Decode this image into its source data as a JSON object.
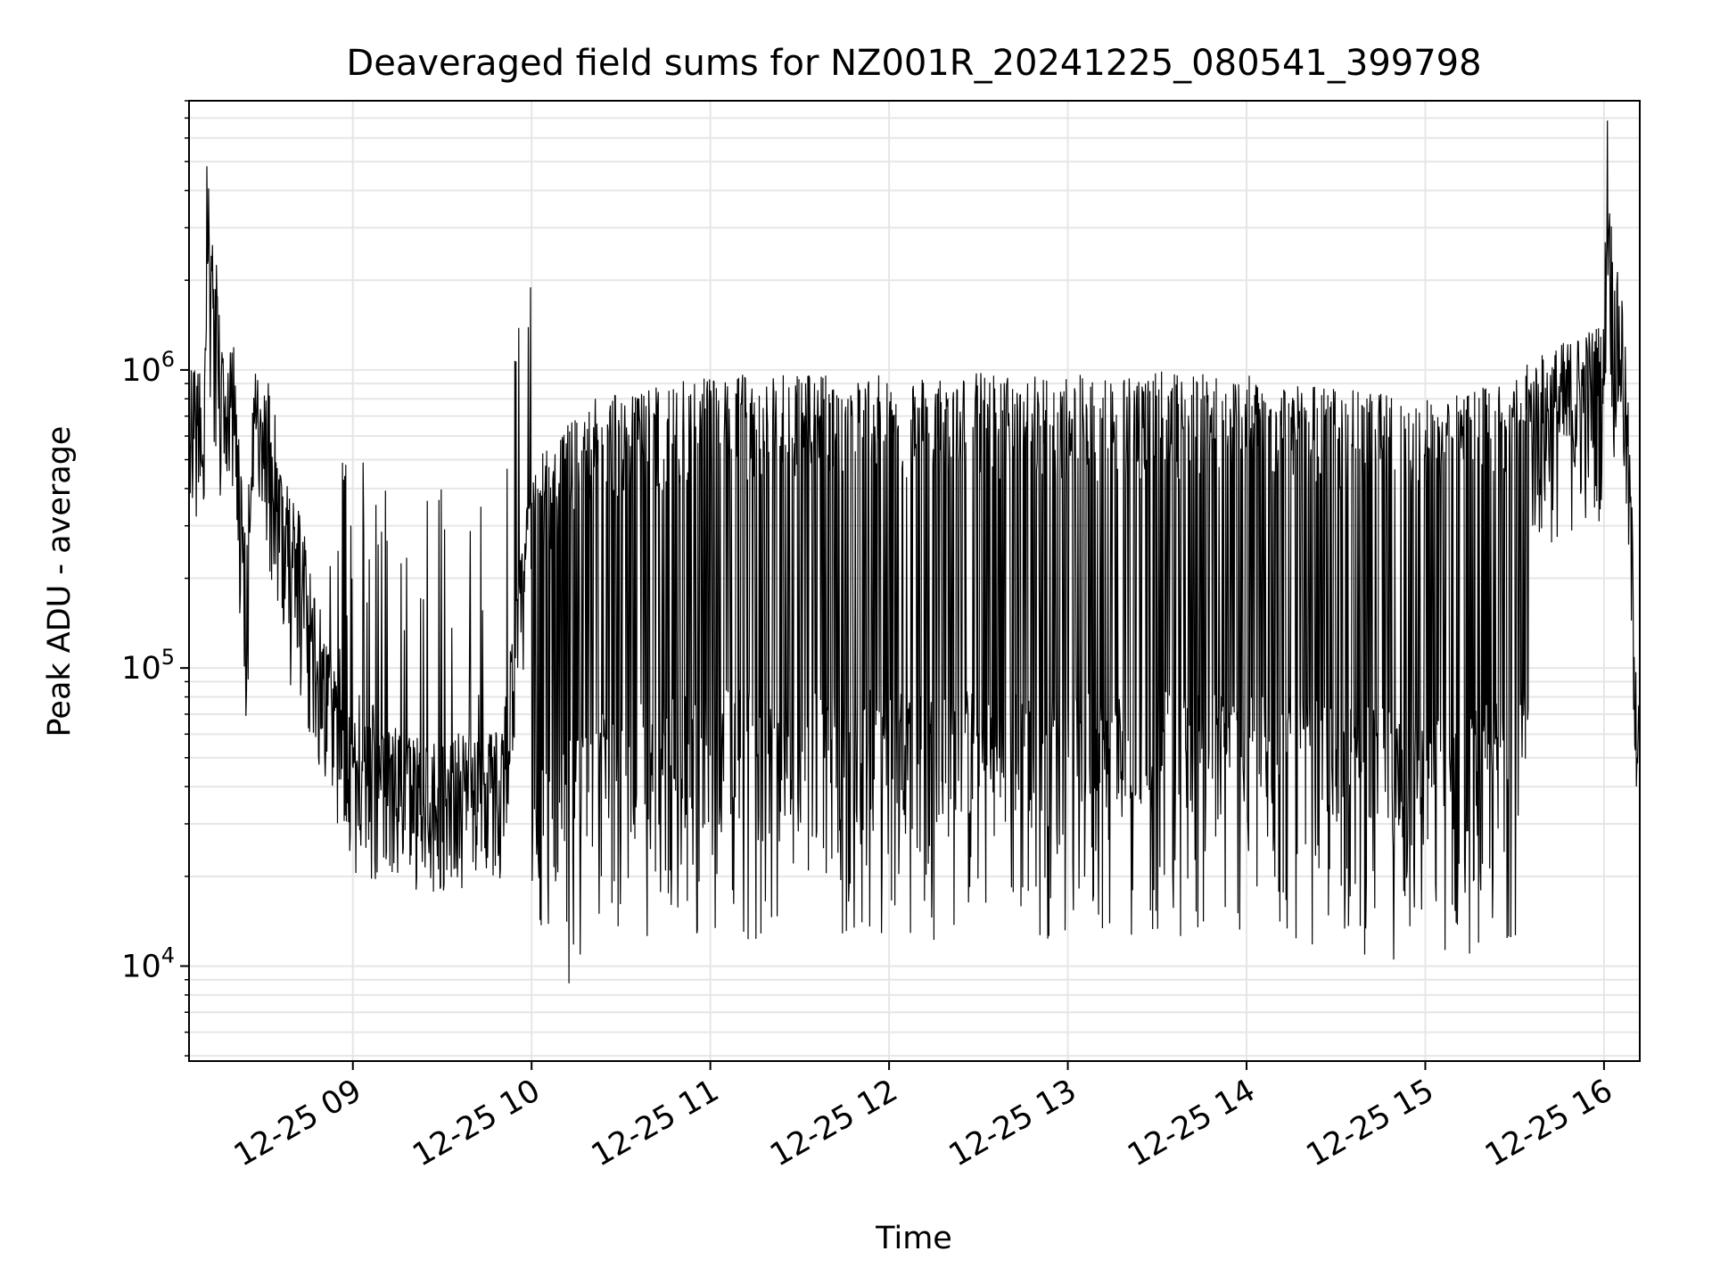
{
  "chart_data": {
    "type": "line",
    "title": "Deaveraged field sums for NZ001R_20241225_080541_399798",
    "xlabel": "Time",
    "ylabel": "Peak ADU - average",
    "xscale": "time",
    "yscale": "log",
    "grid": true,
    "legend": "none",
    "xlim": [
      "2024-12-25 08:05",
      "2024-12-25 16:12"
    ],
    "ylim": [
      4800,
      8000000
    ],
    "x_ticks": [
      {
        "t": "2024-12-25 09:00",
        "label": "12-25 09"
      },
      {
        "t": "2024-12-25 10:00",
        "label": "12-25 10"
      },
      {
        "t": "2024-12-25 11:00",
        "label": "12-25 11"
      },
      {
        "t": "2024-12-25 12:00",
        "label": "12-25 12"
      },
      {
        "t": "2024-12-25 13:00",
        "label": "12-25 13"
      },
      {
        "t": "2024-12-25 14:00",
        "label": "12-25 14"
      },
      {
        "t": "2024-12-25 15:00",
        "label": "12-25 15"
      },
      {
        "t": "2024-12-25 16:00",
        "label": "12-25 16"
      }
    ],
    "y_ticks": [
      {
        "value": 10000,
        "base": "10",
        "exp": "4"
      },
      {
        "value": 100000,
        "base": "10",
        "exp": "5"
      },
      {
        "value": 1000000,
        "base": "10",
        "exp": "6"
      }
    ],
    "series_color": "#000000",
    "series": [
      {
        "points": [
          [
            "2024-12-25 08:05",
            650000
          ],
          [
            "2024-12-25 08:08",
            700000
          ],
          [
            "2024-12-25 08:10",
            500000
          ],
          [
            "2024-12-25 08:11",
            4200000
          ],
          [
            "2024-12-25 08:12",
            2000000
          ],
          [
            "2024-12-25 08:14",
            1500000
          ],
          [
            "2024-12-25 08:17",
            550000
          ],
          [
            "2024-12-25 08:20",
            800000
          ],
          [
            "2024-12-25 08:22",
            400000
          ],
          [
            "2024-12-25 08:24",
            160000
          ],
          [
            "2024-12-25 08:27",
            600000
          ],
          [
            "2024-12-25 08:30",
            650000
          ],
          [
            "2024-12-25 08:33",
            500000
          ],
          [
            "2024-12-25 08:36",
            300000
          ],
          [
            "2024-12-25 08:39",
            250000
          ],
          [
            "2024-12-25 08:42",
            200000
          ],
          [
            "2024-12-25 08:45",
            150000
          ],
          [
            "2024-12-25 08:48",
            110000
          ],
          [
            "2024-12-25 08:51",
            80000
          ],
          [
            "2024-12-25 08:54",
            60000
          ],
          [
            "2024-12-25 08:57",
            45000
          ],
          [
            "2024-12-25 09:00",
            40000
          ],
          [
            "2024-12-25 09:10",
            38000
          ],
          [
            "2024-12-25 09:20",
            36000
          ],
          [
            "2024-12-25 09:30",
            35000
          ],
          [
            "2024-12-25 09:40",
            36000
          ],
          [
            "2024-12-25 09:50",
            38000
          ],
          [
            "2024-12-25 10:00",
            300000
          ],
          [
            "2024-12-25 10:20",
            500000
          ],
          [
            "2024-12-25 10:40",
            550000
          ],
          [
            "2024-12-25 11:00",
            600000
          ],
          [
            "2024-12-25 11:30",
            620000
          ],
          [
            "2024-12-25 12:00",
            600000
          ],
          [
            "2024-12-25 12:30",
            620000
          ],
          [
            "2024-12-25 13:00",
            600000
          ],
          [
            "2024-12-25 13:30",
            620000
          ],
          [
            "2024-12-25 14:00",
            600000
          ],
          [
            "2024-12-25 14:30",
            550000
          ],
          [
            "2024-12-25 15:00",
            500000
          ],
          [
            "2024-12-25 15:20",
            550000
          ],
          [
            "2024-12-25 15:40",
            700000
          ],
          [
            "2024-12-25 16:00",
            900000
          ],
          [
            "2024-12-25 16:01",
            5000000
          ],
          [
            "2024-12-25 16:03",
            1400000
          ],
          [
            "2024-12-25 16:06",
            1200000
          ],
          [
            "2024-12-25 16:08",
            500000
          ],
          [
            "2024-12-25 16:10",
            150000
          ],
          [
            "2024-12-25 16:11",
            70000
          ],
          [
            "2024-12-25 16:12",
            45000
          ]
        ]
      }
    ]
  }
}
